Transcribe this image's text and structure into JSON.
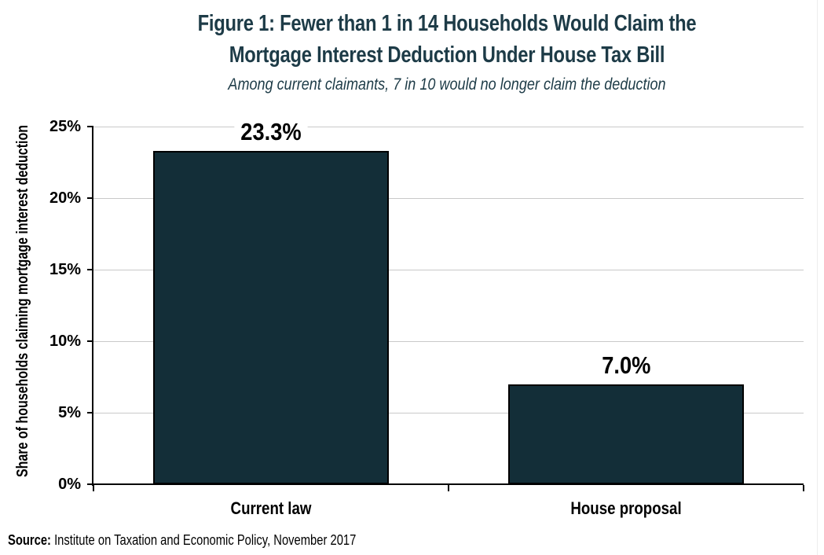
{
  "figure": {
    "source_label": "Source:",
    "source_text": "Institute on Taxation and Economic Policy, November 2017"
  },
  "colors": {
    "title": "#1d3b47",
    "subtitle": "#1d3b47",
    "bar_fill": "#132e38",
    "bar_border": "#000000",
    "gridline": "#c9c9c9",
    "axis": "#000000",
    "text": "#000000",
    "background": "#ffffff"
  },
  "chart_data": {
    "type": "bar",
    "title": "Figure 1: Fewer than 1 in 14 Households Would Claim the Mortgage Interest Deduction Under House Tax Bill",
    "title_lines": [
      "Figure 1: Fewer than 1 in 14 Households Would Claim the",
      "Mortgage Interest Deduction Under House Tax Bill"
    ],
    "subtitle": "Among current claimants, 7 in 10 would no longer claim the deduction",
    "categories": [
      "Current law",
      "House proposal"
    ],
    "values": [
      23.3,
      7.0
    ],
    "value_labels": [
      "23.3%",
      "7.0%"
    ],
    "ylabel": "Share of households claiming mortgage interest deduction",
    "xlabel": "",
    "ylim": [
      0,
      25
    ],
    "ytick_interval": 5,
    "ytick_labels": [
      "0%",
      "5%",
      "10%",
      "15%",
      "20%",
      "25%"
    ],
    "grid": true,
    "legend": "none"
  }
}
